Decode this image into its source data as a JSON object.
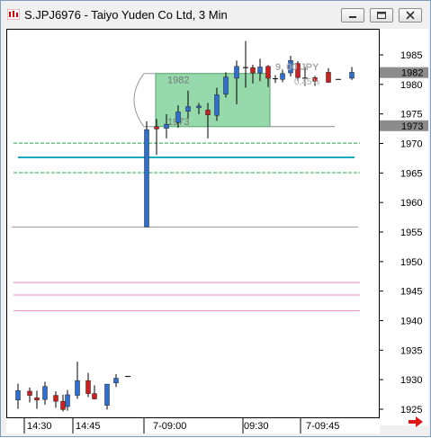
{
  "window": {
    "title": "S.JPJ6976 - Taiyo Yuden Co Ltd, 3 Min",
    "minimize_label": "minimize",
    "restore_label": "restore",
    "close_label": "close"
  },
  "overlay": {
    "box_top_label": "1982",
    "box_bottom_label": "1973",
    "change_label": "9. 00 JPY",
    "change_sub": "0.45%"
  },
  "price_badges": {
    "upper": "1982",
    "lower": "1973"
  },
  "colors": {
    "up_candle": "#2f6fcf",
    "down_candle": "#cc2020",
    "box_fill": "#7ccf96",
    "cyan_line": "#1aaac0",
    "green_dash": "#22aa44",
    "pink_line": "#e887c8",
    "badge_bg": "#8c8c8c"
  },
  "chart_data": {
    "type": "candlestick",
    "y_axis": {
      "ylim": [
        1923,
        1989
      ],
      "ticks": [
        1925,
        1930,
        1935,
        1940,
        1945,
        1950,
        1955,
        1960,
        1965,
        1970,
        1975,
        1980,
        1985
      ]
    },
    "x_axis_labels": [
      "14:30",
      "14:45",
      "7-09:00",
      "09:30",
      "7-09:45"
    ],
    "candles": [
      {
        "o": 1926.7,
        "h": 1929.5,
        "l": 1925.2,
        "c": 1928.3
      },
      {
        "o": 1928.2,
        "h": 1928.8,
        "l": 1926.3,
        "c": 1927.5
      },
      {
        "o": 1927.1,
        "h": 1928.3,
        "l": 1925.2,
        "c": 1926.7
      },
      {
        "o": 1926.8,
        "h": 1929.8,
        "l": 1925.9,
        "c": 1929.0
      },
      {
        "o": 1927.5,
        "h": 1928.2,
        "l": 1925.4,
        "c": 1926.5
      },
      {
        "o": 1926.5,
        "h": 1927.6,
        "l": 1924.8,
        "c": 1925.1
      },
      {
        "o": 1925.6,
        "h": 1928.4,
        "l": 1924.9,
        "c": 1927.6
      },
      {
        "o": 1927.5,
        "h": 1933.2,
        "l": 1926.9,
        "c": 1930.0
      },
      {
        "o": 1930.0,
        "h": 1931.3,
        "l": 1927.2,
        "c": 1927.8
      },
      {
        "o": 1927.8,
        "h": 1929.2,
        "l": 1926.8,
        "c": 1926.9
      },
      {
        "o": 1925.8,
        "h": 1929.4,
        "l": 1925.1,
        "c": 1929.4
      },
      {
        "o": 1929.6,
        "h": 1931.1,
        "l": 1928.9,
        "c": 1930.4
      },
      {
        "o": 1930.7,
        "h": 1930.7,
        "l": 1930.7,
        "c": 1930.7
      },
      {
        "o": 1956.0,
        "h": 1973.9,
        "l": 1956.0,
        "c": 1972.5
      },
      {
        "o": 1973.0,
        "h": 1974.3,
        "l": 1968.2,
        "c": 1972.6
      },
      {
        "o": 1972.7,
        "h": 1975.1,
        "l": 1971.0,
        "c": 1973.4
      },
      {
        "o": 1973.7,
        "h": 1976.6,
        "l": 1972.8,
        "c": 1975.5
      },
      {
        "o": 1975.6,
        "h": 1979.1,
        "l": 1974.4,
        "c": 1976.4
      },
      {
        "o": 1976.3,
        "h": 1977.0,
        "l": 1975.1,
        "c": 1976.5
      },
      {
        "o": 1975.8,
        "h": 1977.0,
        "l": 1971.0,
        "c": 1975.0
      },
      {
        "o": 1974.9,
        "h": 1979.6,
        "l": 1974.0,
        "c": 1978.4
      },
      {
        "o": 1978.5,
        "h": 1982.2,
        "l": 1977.9,
        "c": 1981.4
      },
      {
        "o": 1981.2,
        "h": 1984.2,
        "l": 1976.8,
        "c": 1983.2
      },
      {
        "o": 1983.0,
        "h": 1987.5,
        "l": 1979.6,
        "c": 1983.0
      },
      {
        "o": 1983.0,
        "h": 1983.5,
        "l": 1980.3,
        "c": 1982.1
      },
      {
        "o": 1982.1,
        "h": 1984.5,
        "l": 1980.7,
        "c": 1983.1
      },
      {
        "o": 1983.2,
        "h": 1983.4,
        "l": 1979.7,
        "c": 1981.2
      },
      {
        "o": 1981.1,
        "h": 1981.7,
        "l": 1980.4,
        "c": 1981.1
      },
      {
        "o": 1981.0,
        "h": 1982.6,
        "l": 1980.5,
        "c": 1982.0
      },
      {
        "o": 1982.1,
        "h": 1985.0,
        "l": 1981.5,
        "c": 1984.2
      },
      {
        "o": 1983.7,
        "h": 1984.1,
        "l": 1980.8,
        "c": 1981.3
      },
      {
        "o": 1981.2,
        "h": 1983.1,
        "l": 1979.9,
        "c": 1981.2
      },
      {
        "o": 1981.3,
        "h": 1981.6,
        "l": 1979.9,
        "c": 1980.7
      },
      {
        "o": 1982.2,
        "h": 1982.9,
        "l": 1980.4,
        "c": 1980.5
      },
      {
        "o": 1981.0,
        "h": 1981.0,
        "l": 1981.0,
        "c": 1981.0
      },
      {
        "o": 1981.2,
        "h": 1983.1,
        "l": 1980.9,
        "c": 1982.2
      }
    ],
    "levels": [
      {
        "name": "high-band",
        "value": 1970.2,
        "style": "dash",
        "color": "green"
      },
      {
        "name": "mid",
        "value": 1967.8,
        "style": "solid",
        "color": "cyan"
      },
      {
        "name": "low-band",
        "value": 1965.2,
        "style": "dash",
        "color": "green"
      },
      {
        "name": "support",
        "value": 1956.0,
        "style": "solid",
        "color": "gray"
      },
      {
        "name": "pink-upper",
        "value": 1946.6,
        "style": "solid",
        "color": "pink"
      },
      {
        "name": "pink-mid",
        "value": 1944.5,
        "style": "solid",
        "color": "pink"
      },
      {
        "name": "pink-lower",
        "value": 1941.8,
        "style": "solid",
        "color": "pink"
      }
    ],
    "box": {
      "top": 1982.0,
      "bottom": 1973.0
    }
  }
}
